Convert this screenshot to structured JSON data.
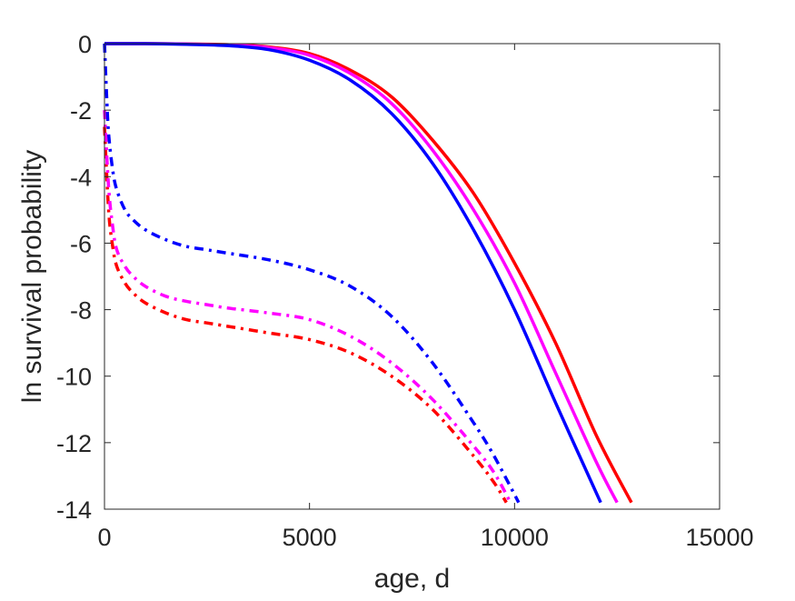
{
  "chart_data": {
    "type": "line",
    "title": "",
    "xlabel": "age, d",
    "ylabel": "ln survival probability",
    "xlim": [
      0,
      15000
    ],
    "ylim": [
      -14,
      0
    ],
    "xticks": [
      0,
      5000,
      10000,
      15000
    ],
    "xtick_labels": [
      "0",
      "5000",
      "10000",
      "15000"
    ],
    "yticks": [
      0,
      -2,
      -4,
      -6,
      -8,
      -10,
      -12,
      -14
    ],
    "ytick_labels": [
      "0",
      "-2",
      "-4",
      "-6",
      "-8",
      "-10",
      "-12",
      "-14"
    ],
    "grid": false,
    "legend": "none",
    "series": [
      {
        "color": "#ff0000",
        "style": "solid",
        "x": [
          0,
          1000,
          2000,
          3000,
          4000,
          5000,
          6000,
          7000,
          8000,
          9000,
          10000,
          11000,
          12000,
          12850
        ],
        "y": [
          0,
          0,
          -0.01,
          -0.03,
          -0.1,
          -0.3,
          -0.8,
          -1.6,
          -2.9,
          -4.5,
          -6.6,
          -9.0,
          -11.8,
          -13.8
        ]
      },
      {
        "color": "#ff00ff",
        "style": "solid",
        "x": [
          0,
          1000,
          2000,
          3000,
          4000,
          5000,
          6000,
          7000,
          8000,
          9000,
          10000,
          11000,
          12000,
          12500
        ],
        "y": [
          0,
          0,
          -0.01,
          -0.04,
          -0.12,
          -0.35,
          -0.9,
          -1.8,
          -3.2,
          -5.0,
          -7.2,
          -9.9,
          -12.6,
          -13.8
        ]
      },
      {
        "color": "#0000ff",
        "style": "solid",
        "x": [
          0,
          1000,
          2000,
          3000,
          4000,
          5000,
          6000,
          7000,
          8000,
          9000,
          10000,
          11000,
          12100
        ],
        "y": [
          0,
          0,
          -0.02,
          -0.06,
          -0.18,
          -0.5,
          -1.1,
          -2.1,
          -3.6,
          -5.6,
          -8.0,
          -10.8,
          -13.8
        ]
      },
      {
        "color": "#ff0000",
        "style": "dashdot",
        "x": [
          0,
          100,
          200,
          300,
          500,
          700,
          1000,
          1500,
          2000,
          2500,
          3000,
          4000,
          5000,
          6000,
          7000,
          8000,
          9000,
          9500,
          9800
        ],
        "y": [
          -2.5,
          -5.0,
          -6.1,
          -6.7,
          -7.2,
          -7.5,
          -7.8,
          -8.1,
          -8.3,
          -8.4,
          -8.5,
          -8.7,
          -8.9,
          -9.3,
          -10.0,
          -11.0,
          -12.4,
          -13.2,
          -13.8
        ]
      },
      {
        "color": "#ff00ff",
        "style": "dashdot",
        "x": [
          0,
          100,
          200,
          300,
          500,
          700,
          1000,
          1500,
          2000,
          2500,
          3000,
          4000,
          5000,
          6000,
          7000,
          8000,
          9000,
          9500,
          9900
        ],
        "y": [
          -2.0,
          -4.3,
          -5.5,
          -6.2,
          -6.7,
          -7.0,
          -7.3,
          -7.6,
          -7.75,
          -7.85,
          -7.95,
          -8.1,
          -8.3,
          -8.8,
          -9.6,
          -10.7,
          -12.1,
          -12.9,
          -13.8
        ]
      },
      {
        "color": "#0000ff",
        "style": "dashdot",
        "x": [
          0,
          50,
          100,
          200,
          300,
          500,
          700,
          1000,
          1500,
          2000,
          2500,
          3000,
          4000,
          5000,
          6000,
          7000,
          8000,
          9000,
          9500,
          10100
        ],
        "y": [
          0,
          -1.5,
          -2.7,
          -3.8,
          -4.4,
          -5.0,
          -5.3,
          -5.6,
          -5.9,
          -6.1,
          -6.2,
          -6.3,
          -6.5,
          -6.8,
          -7.3,
          -8.2,
          -9.6,
          -11.4,
          -12.4,
          -13.8
        ]
      }
    ]
  }
}
